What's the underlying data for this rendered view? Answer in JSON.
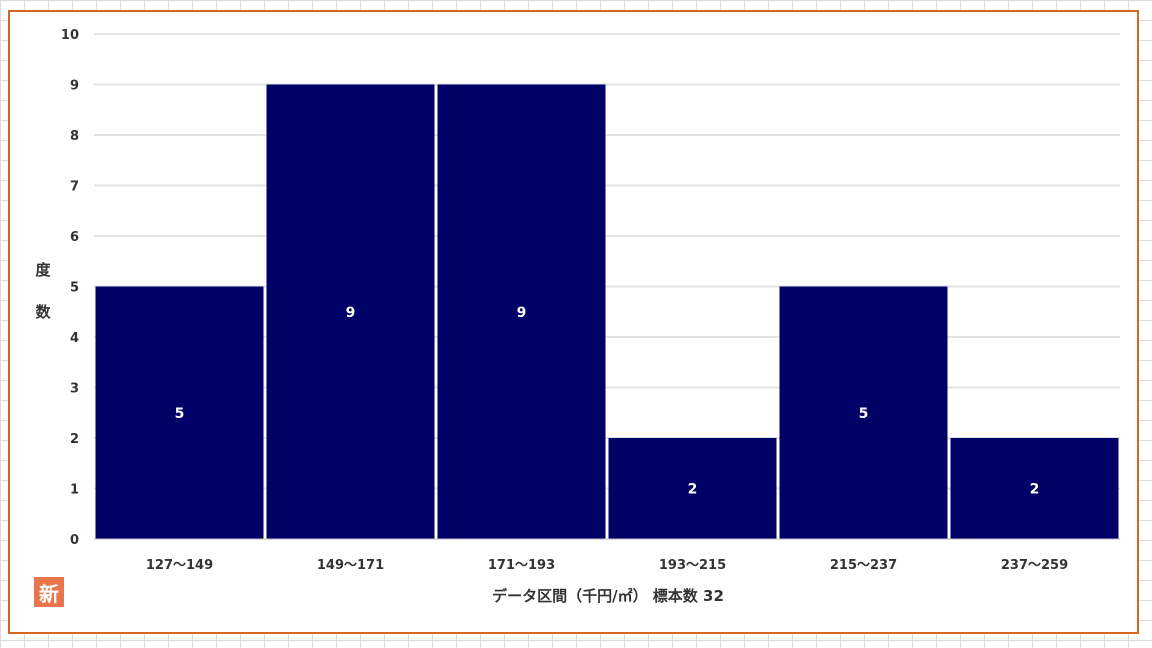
{
  "chart_data": {
    "type": "bar",
    "categories": [
      "127～149",
      "149～171",
      "171～193",
      "193～215",
      "215～237",
      "237～259"
    ],
    "values": [
      5,
      9,
      9,
      2,
      5,
      2
    ],
    "xlabel": "データ区間（千円/㎡） 標本数 32",
    "ylabel": "度数",
    "ylim": [
      0,
      10
    ],
    "yticks": [
      0,
      1,
      2,
      3,
      4,
      5,
      6,
      7,
      8,
      9,
      10
    ],
    "grid": true,
    "bar_color": "#000066",
    "data_label_color": "#ffffff",
    "legend": "none"
  },
  "badge": {
    "text": "新",
    "color": "#e8764a"
  },
  "frame_color": "#d2691e"
}
